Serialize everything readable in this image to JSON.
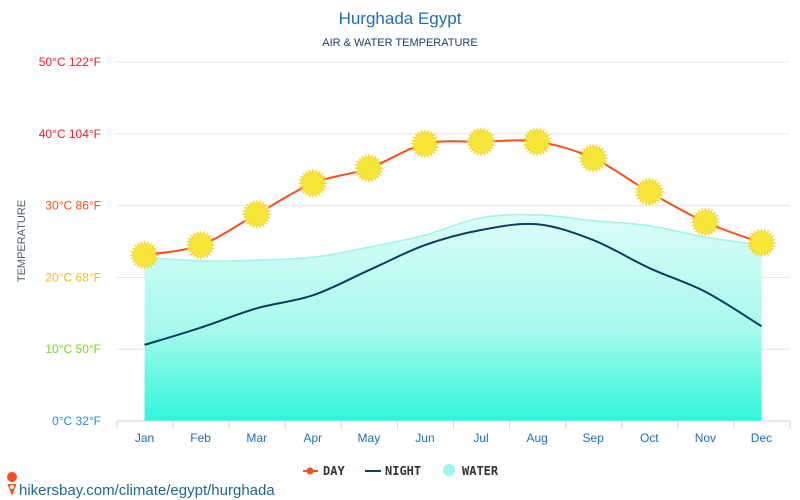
{
  "chart_data": {
    "type": "line",
    "title": "Hurghada Egypt",
    "subtitle": "AIR & WATER TEMPERATURE",
    "ylabel": "TEMPERATURE",
    "xlabel": "",
    "ylim": [
      0,
      50
    ],
    "grid": true,
    "legend_position": "bottom-center",
    "y_ticks": [
      {
        "value": 0,
        "label": "0°C 32°F",
        "color": "#2a8fd6"
      },
      {
        "value": 10,
        "label": "10°C 50°F",
        "color": "#7ed321"
      },
      {
        "value": 20,
        "label": "20°C 68°F",
        "color": "#f5b82e"
      },
      {
        "value": 30,
        "label": "30°C 86°F",
        "color": "#f4511e"
      },
      {
        "value": 40,
        "label": "40°C 104°F",
        "color": "#e8212f"
      },
      {
        "value": 50,
        "label": "50°C 122°F",
        "color": "#e8212f"
      }
    ],
    "categories": [
      "Jan",
      "Feb",
      "Mar",
      "Apr",
      "May",
      "Jun",
      "Jul",
      "Aug",
      "Sep",
      "Oct",
      "Nov",
      "Dec"
    ],
    "series": [
      {
        "name": "DAY",
        "color": "#f4511e",
        "values": [
          23.1,
          24.5,
          28.8,
          33.1,
          35.2,
          38.6,
          38.9,
          38.9,
          36.6,
          31.9,
          27.7,
          24.8
        ]
      },
      {
        "name": "NIGHT",
        "color": "#0b3d5e",
        "values": [
          10.6,
          13.0,
          15.7,
          17.5,
          21.0,
          24.5,
          26.6,
          27.4,
          25.2,
          21.3,
          18.0,
          13.2
        ]
      },
      {
        "name": "WATER",
        "color": "#9ff6ee",
        "values": [
          22.8,
          22.3,
          22.4,
          22.8,
          24.2,
          25.9,
          28.3,
          28.7,
          27.9,
          27.2,
          25.6,
          24.5
        ]
      }
    ]
  },
  "footer": {
    "source": "hikersbay.com/climate/egypt/hurghada"
  }
}
